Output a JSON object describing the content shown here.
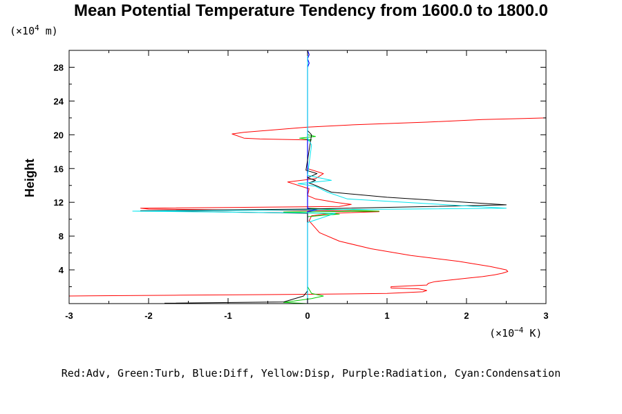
{
  "chart_data": {
    "type": "line",
    "title": "Mean Potential Temperature Tendency from 1600.0 to 1800.0",
    "ylabel": "Height",
    "yunit_pre": "(×10",
    "yunit_exp": "4",
    "yunit_post": " m)",
    "xunit_pre": "(×10",
    "xunit_exp": "−4",
    "xunit_post": " K)",
    "xlim": [
      -3,
      3
    ],
    "ylim": [
      0,
      30
    ],
    "xticks": [
      -3,
      -2,
      -1,
      0,
      1,
      2,
      3
    ],
    "xtick_labels": [
      "-3",
      "-2",
      "-1",
      "0",
      "1",
      "2",
      "3"
    ],
    "yticks": [
      4,
      8,
      12,
      16,
      20,
      24,
      28
    ],
    "ytick_labels": [
      "4",
      "8",
      "12",
      "16",
      "20",
      "24",
      "28"
    ],
    "legend": "Red:Adv, Green:Turb, Blue:Diff, Yellow:Disp, Purple:Radiation, Cyan:Condensation",
    "series": [
      {
        "name": "Adv",
        "color": "#ff0000",
        "x": [
          -3.0,
          -1.6,
          0.0,
          1.0,
          1.45,
          1.5,
          1.4,
          1.05,
          1.05,
          1.5,
          1.52,
          1.6,
          1.8,
          2.0,
          2.2,
          2.35,
          2.45,
          2.52,
          2.5,
          2.3,
          1.9,
          1.3,
          0.8,
          0.4,
          0.15,
          0.02,
          0.05,
          0.3,
          0.9,
          0.25,
          -1.0,
          -2.0,
          -2.1,
          0.4,
          0.55,
          0.35,
          0.1,
          0.0,
          0.02,
          -0.25,
          0.1,
          0.2,
          0.0,
          0.0,
          -0.6,
          -0.8,
          -0.95,
          -0.8,
          -0.4,
          0.0,
          0.6,
          1.5,
          2.2,
          3.0
        ],
        "y": [
          0.9,
          1.0,
          1.1,
          1.2,
          1.4,
          1.55,
          1.75,
          1.85,
          2.0,
          2.2,
          2.4,
          2.6,
          2.8,
          3.0,
          3.2,
          3.4,
          3.6,
          3.8,
          4.0,
          4.4,
          5.0,
          5.7,
          6.5,
          7.4,
          8.4,
          9.8,
          10.4,
          10.7,
          10.9,
          11.0,
          11.1,
          11.2,
          11.3,
          11.5,
          11.75,
          12.0,
          12.4,
          12.8,
          13.6,
          14.4,
          14.8,
          15.4,
          16.0,
          19.4,
          19.5,
          19.6,
          20.1,
          20.3,
          20.6,
          20.9,
          21.2,
          21.5,
          21.8,
          22.0
        ]
      },
      {
        "name": "Turb",
        "color": "#00cc00",
        "x": [
          0.0,
          -0.3,
          0.05,
          0.2,
          0.05,
          0.0,
          0.0,
          0.4,
          -0.3,
          0.9,
          0.5,
          0.0,
          0.0,
          0.05,
          -0.1,
          0.1,
          0.0,
          0.0
        ],
        "y": [
          0.0,
          0.15,
          0.6,
          0.9,
          1.2,
          2.0,
          10.3,
          10.6,
          10.85,
          10.95,
          11.1,
          11.3,
          19.3,
          19.4,
          19.6,
          19.8,
          20.0,
          30.0
        ]
      },
      {
        "name": "Diff",
        "color": "#0000ff",
        "x": [
          0.0,
          0.0,
          0.12,
          0.0,
          0.0,
          0.02,
          0.0,
          0.02,
          0.0
        ],
        "y": [
          0.0,
          10.9,
          11.1,
          11.3,
          28.0,
          28.5,
          29.0,
          29.5,
          30.0
        ],
        "width": 1.2
      },
      {
        "name": "Radiation",
        "color": "#000000",
        "x": [
          -1.8,
          -0.3,
          -0.05,
          0.0,
          0.0,
          -2.1,
          0.0,
          2.5,
          2.0,
          1.0,
          0.3,
          0.1,
          0.02,
          0.1,
          0.0,
          0.12,
          -0.02,
          0.05,
          0.0,
          0.0
        ],
        "y": [
          0.05,
          0.2,
          0.9,
          1.5,
          10.7,
          11.0,
          11.2,
          11.7,
          12.0,
          12.6,
          13.2,
          14.0,
          14.3,
          14.6,
          14.9,
          15.4,
          15.8,
          20.0,
          20.5,
          30.0
        ]
      },
      {
        "name": "Condensation",
        "color": "#00e5ee",
        "x": [
          0.0,
          0.0,
          0.35,
          -2.2,
          0.0,
          2.5,
          0.5,
          0.25,
          0.1,
          -0.12,
          0.3,
          0.0,
          0.05,
          0.0,
          0.0
        ],
        "y": [
          0.0,
          9.6,
          10.7,
          10.95,
          11.1,
          11.3,
          12.4,
          13.2,
          13.9,
          14.2,
          14.6,
          15.2,
          18.8,
          19.6,
          30.0
        ]
      }
    ]
  }
}
